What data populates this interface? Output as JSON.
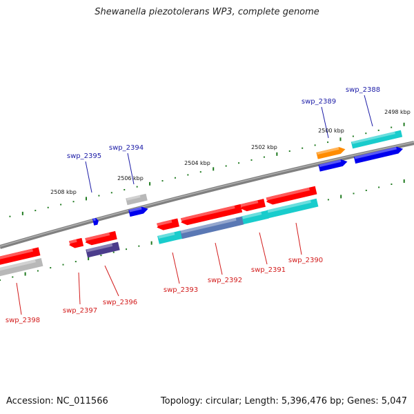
{
  "title": "Shewanella piezotolerans WP3, complete genome",
  "footer": {
    "accession": "Accession: NC_011566",
    "topology": "Topology: circular; Length: 5,396,476 bp; Genes: 5,047"
  },
  "scale_labels": [
    "2498 kbp",
    "2500 kbp",
    "2502 kbp",
    "2504 kbp",
    "2506 kbp",
    "2508 kbp"
  ],
  "gene_labels": {
    "top": [
      "swp_2388",
      "swp_2389",
      "swp_2394",
      "swp_2395"
    ],
    "bottom": [
      "swp_2390",
      "swp_2391",
      "swp_2392",
      "swp_2393",
      "swp_2396",
      "swp_2397",
      "swp_2398"
    ]
  },
  "colors": {
    "backbone": "#808080",
    "tick": "#1f7a1f",
    "label_top": "#1a1aa6",
    "label_bottom": "#d21a1a",
    "red": "#ff0000",
    "blue": "#0000ee",
    "cyan": "#19cccc",
    "gray": "#b8b8b8",
    "orange": "#ff8c00",
    "navy": "#4b3c8c",
    "steel": "#5a78b4"
  }
}
